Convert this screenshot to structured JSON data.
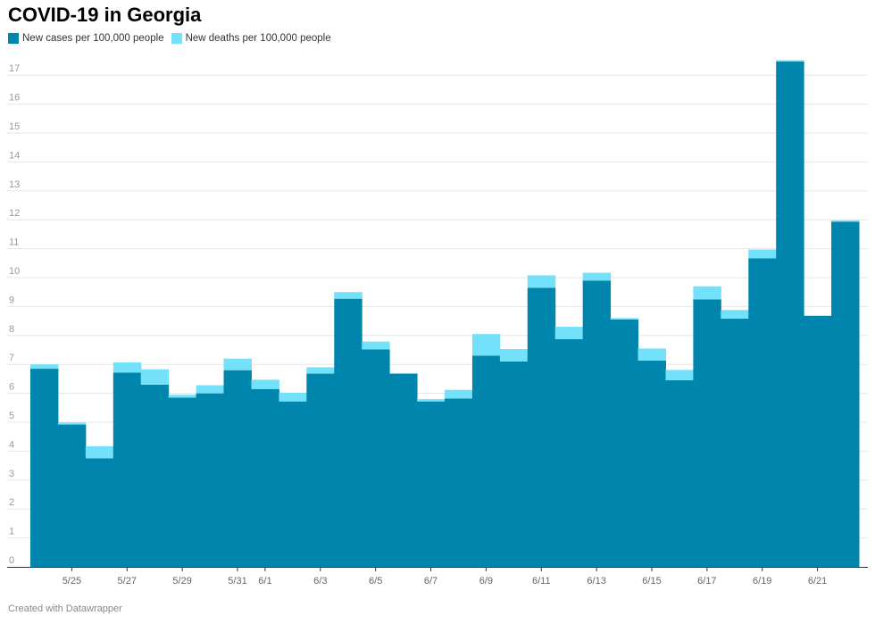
{
  "title": "COVID-19 in Georgia",
  "footer": "Created with Datawrapper",
  "colors": {
    "cases": "#0085ad",
    "deaths": "#73e1fa",
    "grid": "#e6e6e6",
    "axis": "#333333"
  },
  "legend": [
    {
      "label": "New cases per 100,000 people",
      "color": "#0085ad"
    },
    {
      "label": "New deaths per 100,000 people",
      "color": "#73e1fa"
    }
  ],
  "chart_data": {
    "type": "bar",
    "stacked": true,
    "grid": true,
    "legend_position": "top-left",
    "ylim": [
      0,
      17.5
    ],
    "yticks": [
      "0",
      "1",
      "2",
      "3",
      "4",
      "5",
      "6",
      "7",
      "8",
      "9",
      "10",
      "11",
      "12",
      "13",
      "14",
      "15",
      "16",
      "17"
    ],
    "xtick_labels": [
      "5/25",
      "5/27",
      "5/29",
      "5/31",
      "6/1",
      "6/3",
      "6/5",
      "6/7",
      "6/9",
      "6/11",
      "6/13",
      "6/15",
      "6/17",
      "6/19",
      "6/21"
    ],
    "categories": [
      "5/24",
      "5/25",
      "5/26",
      "5/27",
      "5/28",
      "5/29",
      "5/30",
      "5/31",
      "6/1",
      "6/2",
      "6/3",
      "6/4",
      "6/5",
      "6/6",
      "6/7",
      "6/8",
      "6/9",
      "6/10",
      "6/11",
      "6/12",
      "6/13",
      "6/14",
      "6/15",
      "6/16",
      "6/17",
      "6/18",
      "6/19",
      "6/20",
      "6/21",
      "6/22"
    ],
    "series": [
      {
        "name": "New cases per 100,000 people",
        "values": [
          6.85,
          4.92,
          3.75,
          6.72,
          6.3,
          5.85,
          6.0,
          6.8,
          6.15,
          5.72,
          6.68,
          9.27,
          7.52,
          6.68,
          5.72,
          5.82,
          7.3,
          7.1,
          9.65,
          7.87,
          9.9,
          8.55,
          7.13,
          6.45,
          9.25,
          8.58,
          10.67,
          17.47,
          8.68,
          11.93
        ]
      },
      {
        "name": "New deaths per 100,000 people",
        "values": [
          0.15,
          0.07,
          0.42,
          0.35,
          0.53,
          0.1,
          0.28,
          0.4,
          0.32,
          0.3,
          0.22,
          0.23,
          0.27,
          0.01,
          0.08,
          0.3,
          0.75,
          0.43,
          0.43,
          0.43,
          0.27,
          0.05,
          0.42,
          0.36,
          0.45,
          0.3,
          0.3,
          0.05,
          0.0,
          0.05
        ]
      }
    ]
  }
}
